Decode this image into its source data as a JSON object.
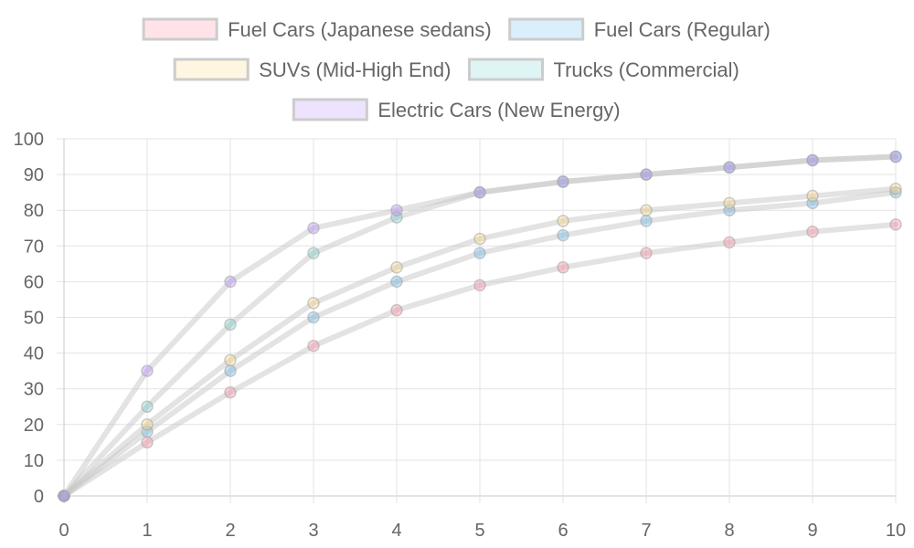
{
  "chart_data": {
    "type": "line",
    "x": [
      0,
      1,
      2,
      3,
      4,
      5,
      6,
      7,
      8,
      9,
      10
    ],
    "xlim": [
      0,
      10
    ],
    "ylim": [
      0,
      100
    ],
    "x_ticks": [
      "0",
      "1",
      "2",
      "3",
      "4",
      "5",
      "6",
      "7",
      "8",
      "9",
      "10"
    ],
    "y_ticks": [
      "0",
      "10",
      "20",
      "30",
      "40",
      "50",
      "60",
      "70",
      "80",
      "90",
      "100"
    ],
    "grid": true,
    "legend_position": "top",
    "line_color": "#c8c8c8",
    "series": [
      {
        "name": "Fuel Cars (Japanese sedans)",
        "color": "#ff6384",
        "values": [
          0,
          15,
          29,
          42,
          52,
          59,
          64,
          68,
          71,
          74,
          76
        ]
      },
      {
        "name": "Fuel Cars (Regular)",
        "color": "#36a2eb",
        "values": [
          0,
          18,
          35,
          50,
          60,
          68,
          73,
          77,
          80,
          82,
          85
        ]
      },
      {
        "name": "SUVs (Mid-High End)",
        "color": "#ffce56",
        "values": [
          0,
          20,
          38,
          54,
          64,
          72,
          77,
          80,
          82,
          84,
          86
        ]
      },
      {
        "name": "Trucks (Commercial)",
        "color": "#4bc0c0",
        "values": [
          0,
          25,
          48,
          68,
          78,
          85,
          88,
          90,
          92,
          94,
          95
        ]
      },
      {
        "name": "Electric Cars (New Energy)",
        "color": "#9966ff",
        "values": [
          0,
          35,
          60,
          75,
          80,
          85,
          88,
          90,
          92,
          94,
          95
        ]
      }
    ]
  }
}
